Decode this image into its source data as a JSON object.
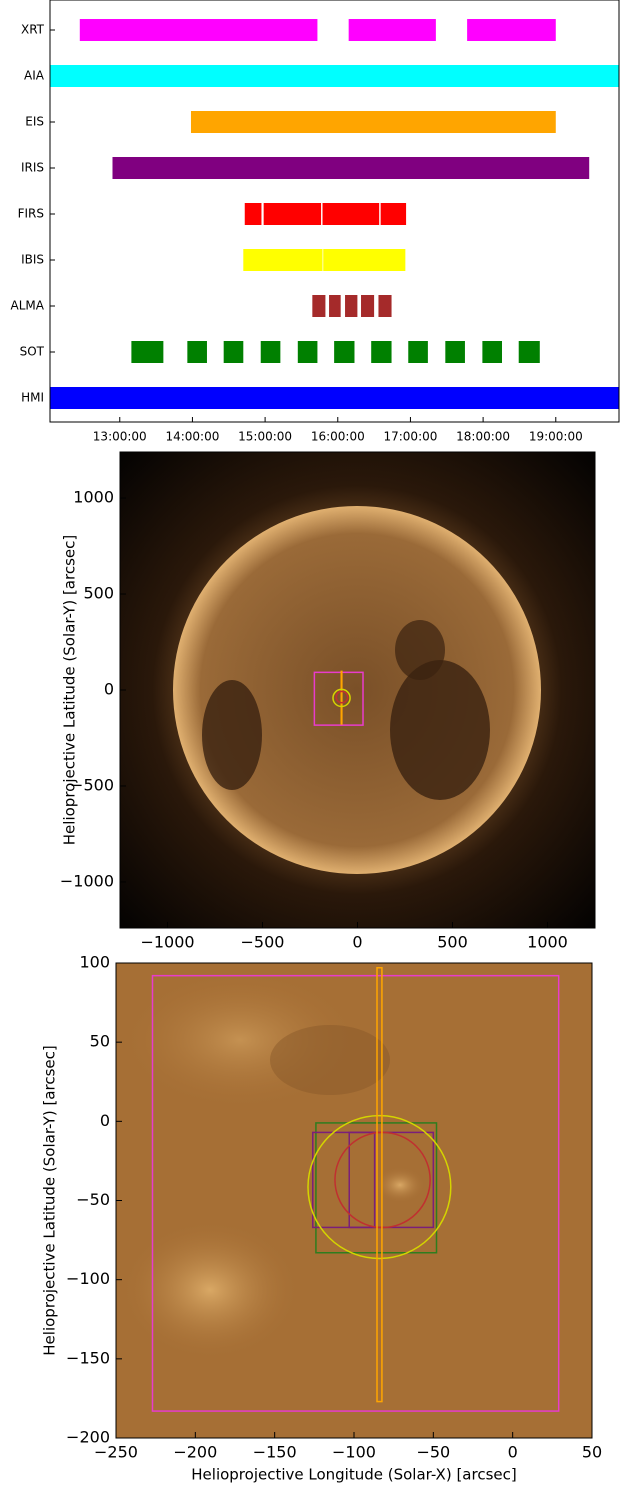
{
  "chart_data": [
    {
      "type": "timeline",
      "xlim": [
        12.04,
        19.87
      ],
      "xticks": [
        {
          "value": 13,
          "label": "13:00:00"
        },
        {
          "value": 14,
          "label": "14:00:00"
        },
        {
          "value": 15,
          "label": "15:00:00"
        },
        {
          "value": 16,
          "label": "16:00:00"
        },
        {
          "value": 17,
          "label": "17:00:00"
        },
        {
          "value": 18,
          "label": "18:00:00"
        },
        {
          "value": 19,
          "label": "19:00:00"
        }
      ],
      "series": [
        {
          "name": "XRT",
          "color": "#ff00ff",
          "values": [
            [
              12.45,
              15.72
            ],
            [
              16.15,
              17.35
            ],
            [
              17.78,
              19.0
            ]
          ]
        },
        {
          "name": "AIA",
          "color": "#00ffff",
          "values": [
            [
              12.04,
              19.87
            ]
          ]
        },
        {
          "name": "EIS",
          "color": "#ffa500",
          "values": [
            [
              13.98,
              19.0
            ]
          ]
        },
        {
          "name": "IRIS",
          "color": "#800080",
          "values": [
            [
              12.9,
              19.46
            ]
          ]
        },
        {
          "name": "FIRS",
          "color": "#ff0000",
          "values": [
            [
              14.72,
              14.95
            ],
            [
              14.98,
              15.77
            ],
            [
              15.79,
              16.57
            ],
            [
              16.59,
              16.94
            ]
          ]
        },
        {
          "name": "IBIS",
          "color": "#ffff00",
          "values": [
            [
              14.7,
              15.79
            ],
            [
              15.8,
              16.93
            ]
          ]
        },
        {
          "name": "ALMA",
          "color": "#a52a2a",
          "values": [
            [
              15.65,
              15.83
            ],
            [
              15.88,
              16.04
            ],
            [
              16.1,
              16.27
            ],
            [
              16.32,
              16.5
            ],
            [
              16.56,
              16.74
            ]
          ]
        },
        {
          "name": "SOT",
          "color": "#008000",
          "values": [
            [
              13.16,
              13.6
            ],
            [
              13.93,
              14.2
            ],
            [
              14.43,
              14.7
            ],
            [
              14.94,
              15.21
            ],
            [
              15.45,
              15.72
            ],
            [
              15.95,
              16.23
            ],
            [
              16.46,
              16.74
            ],
            [
              16.97,
              17.24
            ],
            [
              17.48,
              17.75
            ],
            [
              17.99,
              18.26
            ],
            [
              18.49,
              18.78
            ]
          ]
        },
        {
          "name": "HMI",
          "color": "#0000ff",
          "values": [
            [
              12.04,
              19.87
            ]
          ]
        }
      ]
    },
    {
      "type": "image",
      "y_label": "Helioprojective Latitude (Solar-Y) [arcsec]",
      "xlim": [
        -1250,
        1250
      ],
      "ylim": [
        -1240,
        1240
      ],
      "xticks": [
        {
          "value": -1000,
          "label": "−1000"
        },
        {
          "value": -500,
          "label": "−500"
        },
        0,
        500,
        1000
      ],
      "yticks": [
        {
          "value": -1000,
          "label": "−1000"
        },
        {
          "value": -500,
          "label": "−500"
        },
        0,
        500,
        1000
      ],
      "overlays": [
        {
          "shape": "rect",
          "color": "#e83ccc",
          "x": [
            -227,
            29
          ],
          "y": [
            -183,
            92
          ]
        },
        {
          "shape": "rect",
          "color": "#ffa500",
          "x": [
            -85.5,
            -82.4
          ],
          "y": [
            -177,
            97
          ]
        },
        {
          "shape": "circle",
          "color": "#d4d400",
          "center": [
            -84,
            -41.5
          ],
          "radius": 45
        },
        {
          "shape": "circle",
          "color": "#c03030",
          "center": [
            -82,
            -37
          ],
          "radius": 30
        }
      ]
    },
    {
      "type": "image",
      "x_label": "Helioprojective Longitude (Solar-X) [arcsec]",
      "y_label": "Helioprojective Latitude (Solar-Y) [arcsec]",
      "xlim": [
        -250,
        50
      ],
      "ylim": [
        -200,
        100
      ],
      "xticks": [
        {
          "value": -250,
          "label": "−250"
        },
        {
          "value": -200,
          "label": "−200"
        },
        {
          "value": -150,
          "label": "−150"
        },
        {
          "value": -100,
          "label": "−100"
        },
        {
          "value": -50,
          "label": "−50"
        },
        0,
        50
      ],
      "yticks": [
        {
          "value": -200,
          "label": "−200"
        },
        {
          "value": -150,
          "label": "−150"
        },
        {
          "value": -100,
          "label": "−100"
        },
        {
          "value": -50,
          "label": "−50"
        },
        0,
        50,
        100
      ],
      "overlays": [
        {
          "shape": "rect",
          "color": "#e83ccc",
          "x": [
            -227,
            29
          ],
          "y": [
            -183,
            92
          ]
        },
        {
          "shape": "rect",
          "color": "#2e7d1e",
          "x": [
            -124,
            -48
          ],
          "y": [
            -83,
            -1
          ]
        },
        {
          "shape": "rect",
          "color": "#7a1f7a",
          "x": [
            -126,
            -87
          ],
          "y": [
            -67,
            -7
          ]
        },
        {
          "shape": "rect",
          "color": "#7a1f7a",
          "x": [
            -103,
            -50
          ],
          "y": [
            -67,
            -7
          ]
        },
        {
          "shape": "circle",
          "color": "#c03030",
          "center": [
            -82,
            -37
          ],
          "radius": 30
        },
        {
          "shape": "circle",
          "color": "#d4d400",
          "center": [
            -84,
            -41.5
          ],
          "radius": 45
        },
        {
          "shape": "rect",
          "color": "#ffa500",
          "x": [
            -85.5,
            -82.4
          ],
          "y": [
            -177,
            97
          ]
        }
      ]
    }
  ]
}
